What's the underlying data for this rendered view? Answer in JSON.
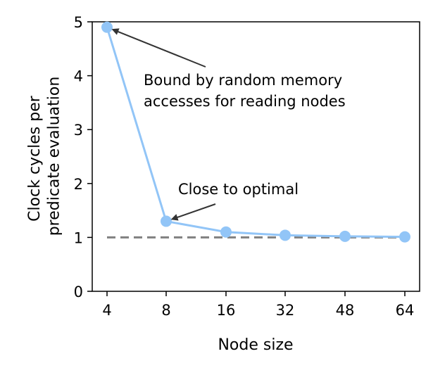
{
  "chart_data": {
    "type": "line",
    "title": "",
    "xlabel": "Node size",
    "ylabel_lines": [
      "Clock cycles per",
      "predicate evaluation"
    ],
    "categories": [
      "4",
      "8",
      "16",
      "32",
      "48",
      "64"
    ],
    "series": [
      {
        "values": [
          4.9,
          1.3,
          1.1,
          1.04,
          1.02,
          1.01
        ],
        "color": "#92c5f7"
      }
    ],
    "ylim": [
      0,
      5
    ],
    "yticks": [
      "0",
      "1",
      "2",
      "3",
      "4",
      "5"
    ],
    "reference_line": {
      "y": 1,
      "style": "dashed",
      "color": "#808080"
    },
    "annotations": [
      {
        "text_lines": [
          "Bound by random memory",
          "accesses for reading nodes"
        ],
        "points_to_index": 0
      },
      {
        "text_lines": [
          "Close to optimal"
        ],
        "points_to_index": 1
      }
    ],
    "grid": false,
    "legend": "none"
  }
}
